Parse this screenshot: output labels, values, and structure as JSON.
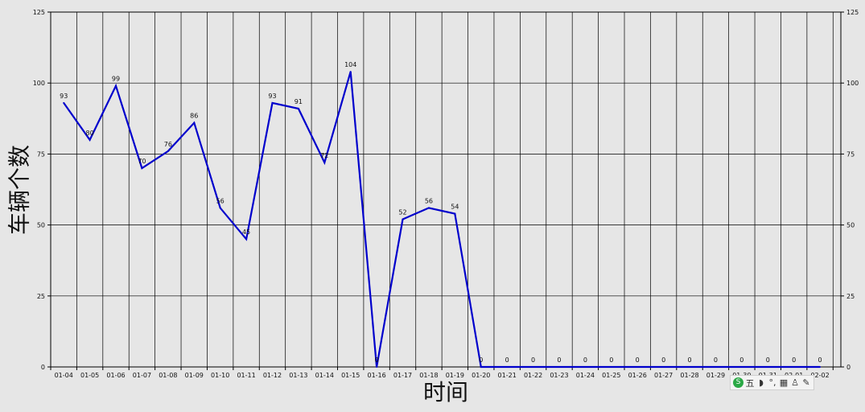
{
  "chart_data": {
    "type": "line",
    "xlabel": "时间",
    "ylabel": "车辆个数",
    "categories": [
      "01-04",
      "01-05",
      "01-06",
      "01-07",
      "01-08",
      "01-09",
      "01-10",
      "01-11",
      "01-12",
      "01-13",
      "01-14",
      "01-15",
      "01-16",
      "01-17",
      "01-18",
      "01-19",
      "01-20",
      "01-21",
      "01-22",
      "01-23",
      "01-24",
      "01-25",
      "01-26",
      "01-27",
      "01-28",
      "01-29",
      "01-30",
      "01-31",
      "02-01",
      "02-02"
    ],
    "values": [
      93,
      80,
      99,
      70,
      76,
      86,
      56,
      45,
      93,
      91,
      72,
      104,
      0,
      52,
      56,
      54,
      0,
      0,
      0,
      0,
      0,
      0,
      0,
      0,
      0,
      0,
      0,
      0,
      0,
      0
    ],
    "ylim": [
      0,
      125
    ],
    "yticks": [
      0,
      25,
      50,
      75,
      100,
      125
    ],
    "grid": true,
    "color": "#0000cc"
  },
  "ime_toolbar": {
    "logo": "S",
    "mode": "五",
    "items": [
      "moon-icon",
      "punctuation-icon",
      "keyboard-icon",
      "user-icon",
      "wrench-icon"
    ]
  }
}
